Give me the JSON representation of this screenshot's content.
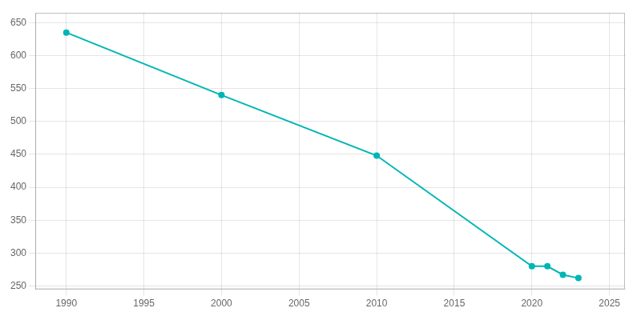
{
  "chart_data": {
    "type": "line",
    "x": [
      1990,
      2000,
      2010,
      2020,
      2021,
      2022,
      2023
    ],
    "values": [
      635,
      540,
      448,
      280,
      280,
      267,
      262
    ],
    "color": "#00b5b5",
    "marker": "circle",
    "xlim": [
      1988,
      2026
    ],
    "xticks": [
      1990,
      1995,
      2000,
      2005,
      2010,
      2015,
      2020,
      2025
    ],
    "ylim": [
      245,
      665
    ],
    "yticks": [
      250,
      300,
      350,
      400,
      450,
      500,
      550,
      600,
      650
    ],
    "grid": true
  }
}
